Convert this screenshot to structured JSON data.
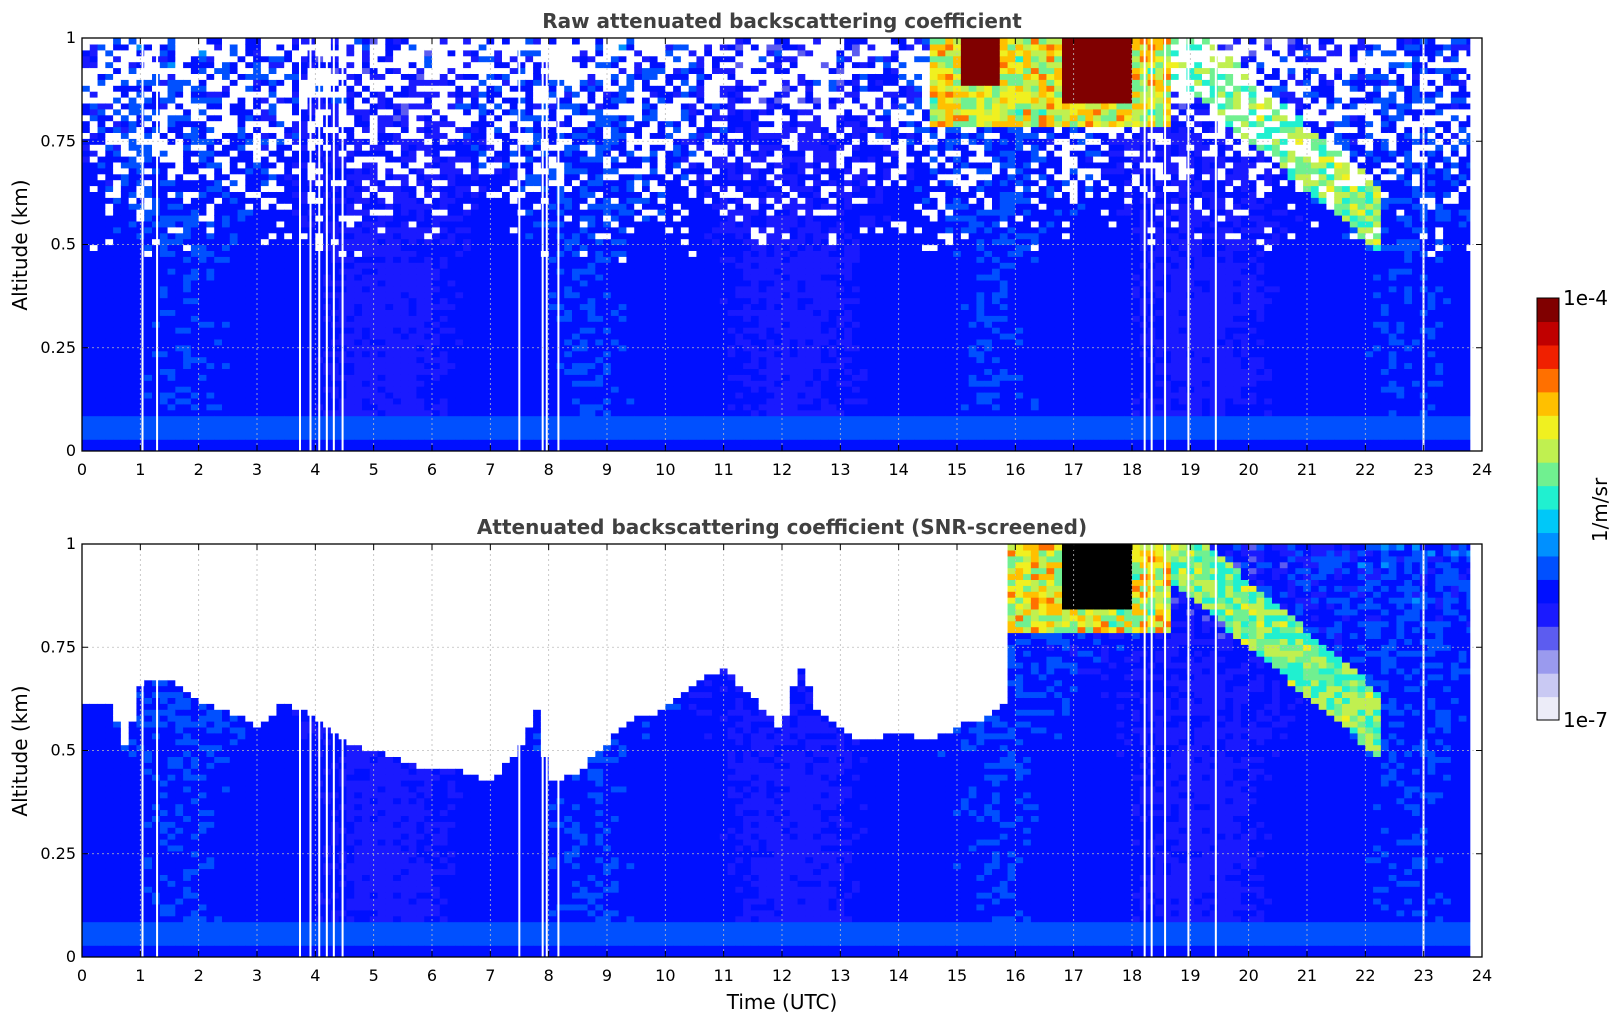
{
  "chart_data": [
    {
      "type": "heatmap",
      "title": "Raw attenuated backscattering coefficient",
      "ylabel": "Altitude (km)",
      "xlabel": "",
      "xlim": [
        0,
        24
      ],
      "ylim": [
        0,
        1
      ],
      "x_ticks": [
        "0",
        "1",
        "2",
        "3",
        "4",
        "5",
        "6",
        "7",
        "8",
        "9",
        "10",
        "11",
        "12",
        "13",
        "14",
        "15",
        "16",
        "17",
        "18",
        "19",
        "20",
        "21",
        "22",
        "23",
        "24"
      ],
      "y_ticks": [
        "0",
        "0.25",
        "0.5",
        "0.75",
        "1"
      ],
      "grid": true,
      "screened": false,
      "data_gaps_utc": [
        1.02,
        1.27,
        3.72,
        3.9,
        4.05,
        4.18,
        4.3,
        4.45,
        7.48,
        7.88,
        7.95,
        8.15,
        18.2,
        18.32,
        18.55,
        18.95,
        19.42,
        22.98,
        23.8
      ],
      "features": [
        {
          "kind": "surface_layer",
          "altitude_km": [
            0.0,
            0.08
          ],
          "level": "high"
        },
        {
          "kind": "boundary_layer",
          "altitude_km": [
            0.0,
            0.5
          ],
          "level": "moderate"
        },
        {
          "kind": "cloud",
          "time_utc": [
            14.5,
            18.6
          ],
          "altitude_km": [
            0.8,
            1.0
          ],
          "level": "very_high"
        },
        {
          "kind": "aerosol_layer",
          "time_utc": [
            19.5,
            22.2
          ],
          "altitude_km": [
            0.55,
            0.85
          ],
          "level": "elevated"
        }
      ]
    },
    {
      "type": "heatmap",
      "title": "Attenuated backscattering coefficient (SNR-screened)",
      "ylabel": "Altitude (km)",
      "xlabel": "Time (UTC)",
      "xlim": [
        0,
        24
      ],
      "ylim": [
        0,
        1
      ],
      "x_ticks": [
        "0",
        "1",
        "2",
        "3",
        "4",
        "5",
        "6",
        "7",
        "8",
        "9",
        "10",
        "11",
        "12",
        "13",
        "14",
        "15",
        "16",
        "17",
        "18",
        "19",
        "20",
        "21",
        "22",
        "23",
        "24"
      ],
      "y_ticks": [
        "0",
        "0.25",
        "0.5",
        "0.75",
        "1"
      ],
      "grid": true,
      "screened": true,
      "data_gaps_utc": [
        1.02,
        1.27,
        3.72,
        3.9,
        4.05,
        4.18,
        4.3,
        4.45,
        7.48,
        7.88,
        7.95,
        8.15,
        18.2,
        18.32,
        18.55,
        18.95,
        19.42,
        22.98,
        23.8
      ],
      "signal_top_km": [
        [
          0.0,
          0.62
        ],
        [
          0.5,
          0.62
        ],
        [
          0.75,
          0.5
        ],
        [
          1.0,
          0.66
        ],
        [
          1.5,
          0.68
        ],
        [
          2.0,
          0.62
        ],
        [
          2.5,
          0.6
        ],
        [
          3.0,
          0.56
        ],
        [
          3.5,
          0.62
        ],
        [
          4.0,
          0.58
        ],
        [
          4.5,
          0.52
        ],
        [
          5.0,
          0.5
        ],
        [
          5.5,
          0.48
        ],
        [
          6.0,
          0.45
        ],
        [
          6.5,
          0.45
        ],
        [
          7.0,
          0.43
        ],
        [
          7.5,
          0.5
        ],
        [
          7.8,
          0.6
        ],
        [
          8.0,
          0.42
        ],
        [
          8.5,
          0.45
        ],
        [
          9.0,
          0.52
        ],
        [
          9.5,
          0.58
        ],
        [
          10.0,
          0.6
        ],
        [
          10.5,
          0.66
        ],
        [
          11.0,
          0.7
        ],
        [
          11.5,
          0.63
        ],
        [
          12.0,
          0.55
        ],
        [
          12.3,
          0.72
        ],
        [
          12.6,
          0.6
        ],
        [
          13.0,
          0.55
        ],
        [
          13.5,
          0.52
        ],
        [
          14.0,
          0.55
        ],
        [
          14.5,
          0.52
        ],
        [
          15.0,
          0.56
        ],
        [
          15.5,
          0.58
        ],
        [
          15.8,
          0.62
        ],
        [
          15.85,
          1.0
        ],
        [
          24.0,
          1.0
        ]
      ]
    }
  ],
  "colorbar": {
    "label": "1/m/sr",
    "max_label": "1e-4",
    "min_label": "1e-7",
    "colormap": [
      "#ececf8",
      "#c9c9f3",
      "#9a9aee",
      "#5c5cf0",
      "#1a1aff",
      "#0010ff",
      "#0050ff",
      "#0090ff",
      "#00c8f8",
      "#20f0d0",
      "#70f090",
      "#c0f050",
      "#f0f020",
      "#ffc000",
      "#ff7000",
      "#f02000",
      "#c00000",
      "#800000"
    ]
  }
}
